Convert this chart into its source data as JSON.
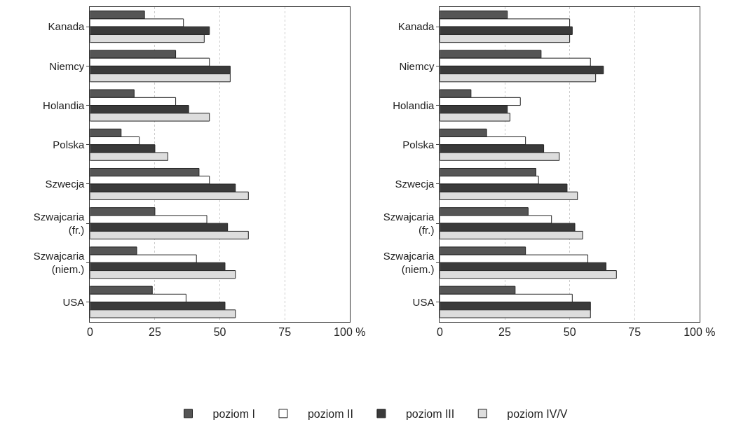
{
  "chart_data": [
    {
      "type": "bar",
      "orientation": "horizontal",
      "categories": [
        "Kanada",
        "Niemcy",
        "Holandia",
        "Polska",
        "Szwecja",
        "Szwajcaria\n(fr.)",
        "Szwajcaria\n(niem.)",
        "USA"
      ],
      "series": [
        {
          "name": "poziom I",
          "color": "#555555",
          "values": [
            21,
            33,
            17,
            12,
            42,
            25,
            18,
            24
          ]
        },
        {
          "name": "poziom II",
          "color": "#ffffff",
          "values": [
            36,
            46,
            33,
            19,
            46,
            45,
            41,
            37
          ]
        },
        {
          "name": "poziom III",
          "color": "#3a3a3a",
          "values": [
            46,
            54,
            38,
            25,
            56,
            53,
            52,
            52
          ]
        },
        {
          "name": "poziom IV/V",
          "color": "#dddddd",
          "values": [
            44,
            54,
            46,
            30,
            61,
            61,
            56,
            56
          ]
        }
      ],
      "xlim": [
        0,
        100
      ],
      "xticks": [
        0,
        25,
        50,
        75,
        {
          "value": 100,
          "label": "100 %"
        }
      ],
      "grid": "x",
      "legend": "bottom"
    },
    {
      "type": "bar",
      "orientation": "horizontal",
      "categories": [
        "Kanada",
        "Niemcy",
        "Holandia",
        "Polska",
        "Szwecja",
        "Szwajcaria\n(fr.)",
        "Szwajcaria\n(niem.)",
        "USA"
      ],
      "series": [
        {
          "name": "poziom I",
          "color": "#555555",
          "values": [
            26,
            39,
            12,
            18,
            37,
            34,
            33,
            29
          ]
        },
        {
          "name": "poziom II",
          "color": "#ffffff",
          "values": [
            50,
            58,
            31,
            33,
            38,
            43,
            57,
            51
          ]
        },
        {
          "name": "poziom III",
          "color": "#3a3a3a",
          "values": [
            51,
            63,
            26,
            40,
            49,
            52,
            64,
            58
          ]
        },
        {
          "name": "poziom IV/V",
          "color": "#dddddd",
          "values": [
            50,
            60,
            27,
            46,
            53,
            55,
            68,
            58
          ]
        }
      ],
      "xlim": [
        0,
        100
      ],
      "xticks": [
        0,
        25,
        50,
        75,
        {
          "value": 100,
          "label": "100 %"
        }
      ],
      "grid": "x",
      "legend": "bottom"
    }
  ]
}
